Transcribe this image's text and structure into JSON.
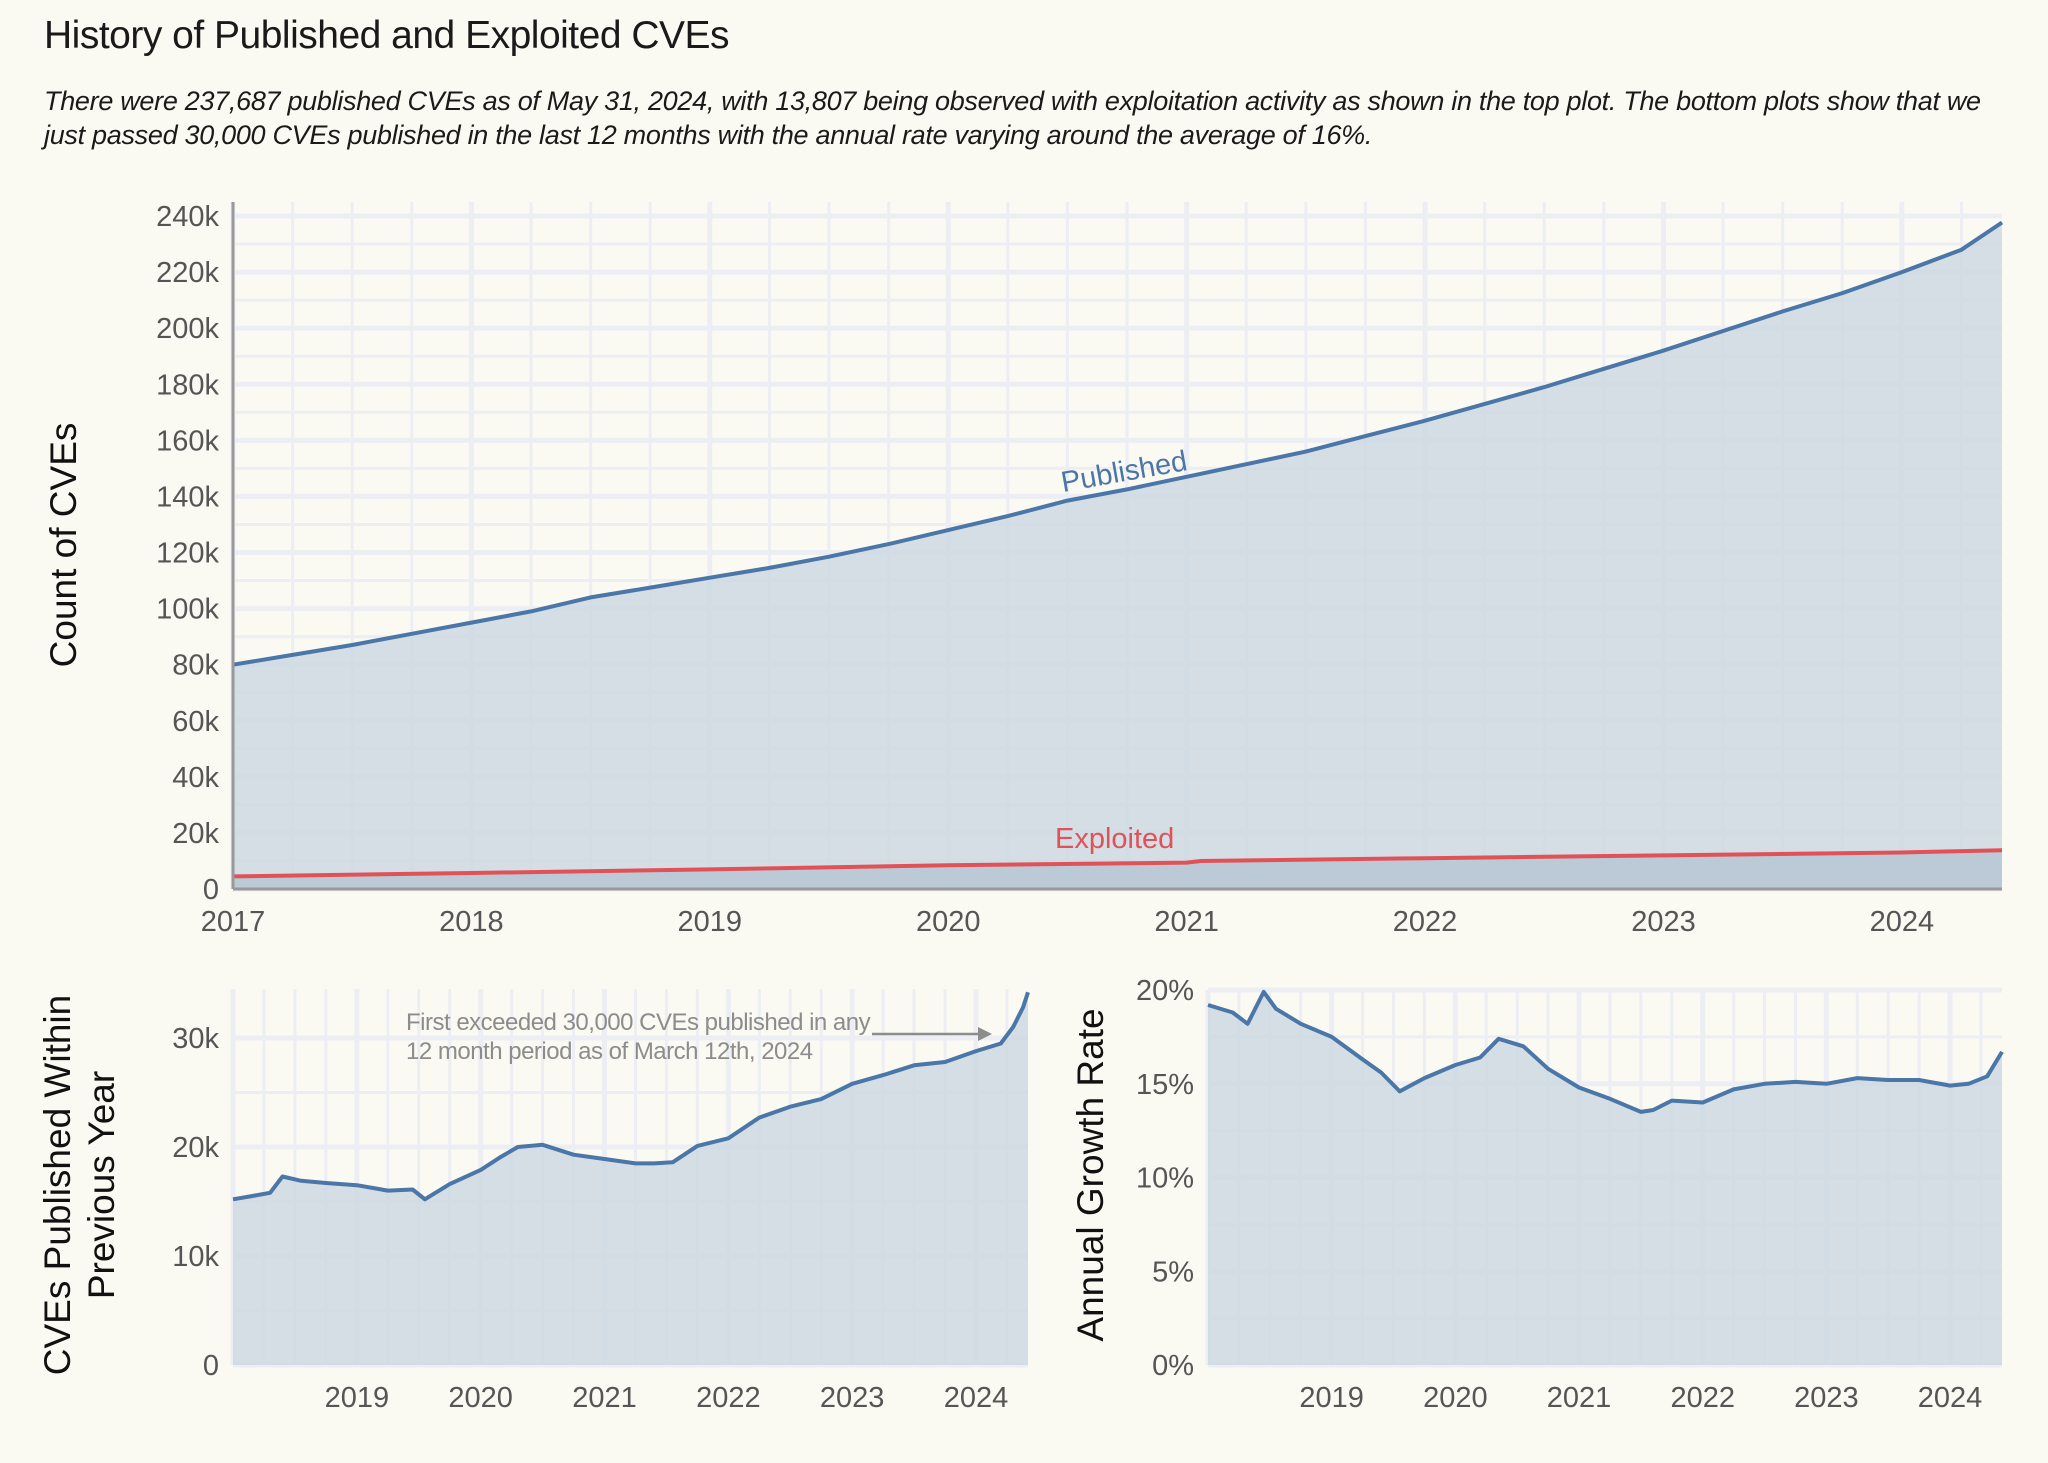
{
  "title": "History of Published and Exploited CVEs",
  "subtitle": "There were 237,687 published CVEs as of May 31, 2024, with 13,807 being observed with exploitation activity as shown in the top plot. The bottom plots show that we just passed 30,000 CVEs published in the last 12 months with the annual rate varying around the average of 16%.",
  "colors": {
    "background": "#fafaf2",
    "published": "#4a76a8",
    "exploited": "#e05257",
    "fill": "#ccd8e2",
    "grid": "#eceef4",
    "annotation": "#8c8c8c"
  },
  "chart_data": [
    {
      "type": "area",
      "ylabel": "Count of CVEs",
      "xlim": [
        2017.0,
        2024.42
      ],
      "ylim": [
        0,
        245000
      ],
      "x_ticks": [
        "2017",
        "2018",
        "2019",
        "2020",
        "2021",
        "2022",
        "2023",
        "2024"
      ],
      "y_ticks": [
        "0",
        "20k",
        "40k",
        "60k",
        "80k",
        "100k",
        "120k",
        "140k",
        "160k",
        "180k",
        "200k",
        "220k",
        "240k"
      ],
      "grid": true,
      "series": [
        {
          "name": "Published",
          "x": [
            2017.0,
            2017.25,
            2017.5,
            2017.75,
            2018.0,
            2018.25,
            2018.5,
            2018.75,
            2019.0,
            2019.25,
            2019.5,
            2019.75,
            2020.0,
            2020.25,
            2020.5,
            2020.75,
            2021.0,
            2021.25,
            2021.5,
            2021.75,
            2022.0,
            2022.25,
            2022.5,
            2022.75,
            2023.0,
            2023.25,
            2023.5,
            2023.75,
            2024.0,
            2024.25,
            2024.42
          ],
          "values": [
            80000,
            83500,
            87000,
            91000,
            95000,
            99000,
            104000,
            107500,
            111000,
            114500,
            118500,
            123000,
            128000,
            133000,
            138500,
            142500,
            147000,
            151500,
            156000,
            161500,
            167000,
            173000,
            179000,
            185500,
            192000,
            199000,
            206000,
            212500,
            220000,
            228000,
            237687
          ]
        },
        {
          "name": "Exploited",
          "x": [
            2017.0,
            2018.0,
            2019.0,
            2020.0,
            2021.0,
            2021.06,
            2022.0,
            2023.0,
            2024.0,
            2024.42
          ],
          "values": [
            4500,
            5700,
            7000,
            8500,
            9400,
            10000,
            11000,
            12000,
            13000,
            13807
          ]
        }
      ]
    },
    {
      "type": "area",
      "ylabel": "CVEs Published Within Previous Year",
      "xlim": [
        2018.0,
        2024.42
      ],
      "ylim": [
        0,
        34500
      ],
      "x_ticks": [
        "2019",
        "2020",
        "2021",
        "2022",
        "2023",
        "2024"
      ],
      "y_ticks": [
        "0",
        "10k",
        "20k",
        "30k"
      ],
      "grid": true,
      "annotation": "First exceeded 30,000 CVEs published in any 12 month period as of March 12th, 2024",
      "annotation_lines": [
        "First exceeded 30,000 CVEs published in any",
        "12 month period as of March 12th, 2024"
      ],
      "x": [
        2018.0,
        2018.15,
        2018.3,
        2018.4,
        2018.55,
        2018.75,
        2019.0,
        2019.25,
        2019.45,
        2019.55,
        2019.75,
        2020.0,
        2020.15,
        2020.3,
        2020.5,
        2020.75,
        2021.0,
        2021.25,
        2021.4,
        2021.55,
        2021.75,
        2022.0,
        2022.25,
        2022.5,
        2022.75,
        2023.0,
        2023.25,
        2023.5,
        2023.75,
        2024.0,
        2024.2,
        2024.3,
        2024.38,
        2024.42
      ],
      "values": [
        15200,
        15500,
        15800,
        17300,
        16900,
        16700,
        16500,
        16000,
        16100,
        15200,
        16600,
        17900,
        19000,
        20000,
        20200,
        19300,
        18900,
        18500,
        18500,
        18600,
        20100,
        20800,
        22700,
        23700,
        24400,
        25800,
        26600,
        27500,
        27800,
        28800,
        29500,
        31000,
        32800,
        34200
      ]
    },
    {
      "type": "area",
      "ylabel": "Annual Growth Rate",
      "xlim": [
        2018.0,
        2024.42
      ],
      "ylim": [
        0,
        20
      ],
      "x_ticks": [
        "2019",
        "2020",
        "2021",
        "2022",
        "2023",
        "2024"
      ],
      "y_ticks": [
        "0%",
        "5%",
        "10%",
        "15%",
        "20%"
      ],
      "grid": true,
      "x": [
        2018.0,
        2018.2,
        2018.32,
        2018.45,
        2018.55,
        2018.75,
        2019.0,
        2019.25,
        2019.4,
        2019.55,
        2019.75,
        2020.0,
        2020.2,
        2020.35,
        2020.55,
        2020.75,
        2021.0,
        2021.25,
        2021.5,
        2021.6,
        2021.75,
        2022.0,
        2022.25,
        2022.5,
        2022.75,
        2023.0,
        2023.25,
        2023.5,
        2023.75,
        2024.0,
        2024.15,
        2024.3,
        2024.42
      ],
      "values": [
        19.2,
        18.8,
        18.2,
        19.9,
        19.0,
        18.2,
        17.5,
        16.3,
        15.6,
        14.6,
        15.3,
        16.0,
        16.4,
        17.4,
        17.0,
        15.8,
        14.8,
        14.2,
        13.5,
        13.6,
        14.1,
        14.0,
        14.7,
        15.0,
        15.1,
        15.0,
        15.3,
        15.2,
        15.2,
        14.9,
        15.0,
        15.4,
        16.7
      ]
    }
  ]
}
